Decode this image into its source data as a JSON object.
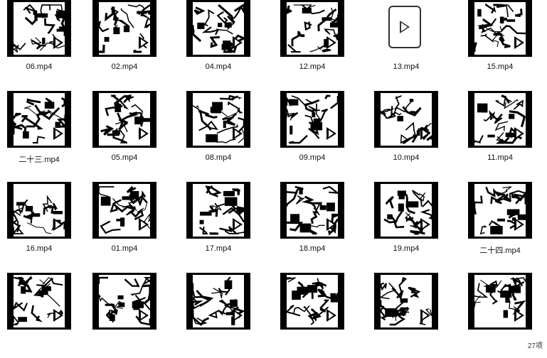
{
  "files": [
    {
      "name": "06.mp4",
      "type": "video"
    },
    {
      "name": "02.mp4",
      "type": "video"
    },
    {
      "name": "04.mp4",
      "type": "video"
    },
    {
      "name": "12.mp4",
      "type": "video"
    },
    {
      "name": "13.mp4",
      "type": "generic"
    },
    {
      "name": "15.mp4",
      "type": "video"
    },
    {
      "name": "二十三.mp4",
      "type": "video"
    },
    {
      "name": "05.mp4",
      "type": "video"
    },
    {
      "name": "08.mp4",
      "type": "video"
    },
    {
      "name": "09.mp4",
      "type": "video"
    },
    {
      "name": "10.mp4",
      "type": "video"
    },
    {
      "name": "11.mp4",
      "type": "video"
    },
    {
      "name": "16.mp4",
      "type": "video"
    },
    {
      "name": "01.mp4",
      "type": "video"
    },
    {
      "name": "17.mp4",
      "type": "video"
    },
    {
      "name": "18.mp4",
      "type": "video"
    },
    {
      "name": "19.mp4",
      "type": "video"
    },
    {
      "name": "二十四.mp4",
      "type": "video"
    },
    {
      "name": "",
      "type": "video"
    },
    {
      "name": "",
      "type": "video"
    },
    {
      "name": "",
      "type": "video"
    },
    {
      "name": "",
      "type": "video"
    },
    {
      "name": "",
      "type": "video"
    },
    {
      "name": "",
      "type": "video"
    }
  ],
  "status": {
    "text": "27项"
  },
  "icons": {
    "video_thumbnail": "video-thumbnail-icon",
    "play": "play-icon",
    "file": "video-file-icon"
  }
}
